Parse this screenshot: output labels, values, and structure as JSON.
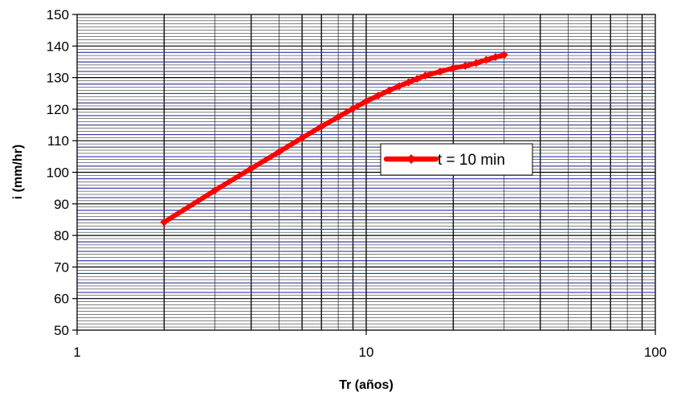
{
  "chart_data": {
    "type": "line",
    "title": "",
    "xlabel": "Tr (años)",
    "ylabel": "i (mm/hr)",
    "xscale": "log",
    "xlim": [
      1,
      100
    ],
    "ylim": [
      50,
      150
    ],
    "x_ticks": [
      "1",
      "10",
      "100"
    ],
    "y_ticks": [
      "50",
      "60",
      "70",
      "80",
      "90",
      "100",
      "110",
      "120",
      "130",
      "140",
      "150"
    ],
    "grid": true,
    "legend_position": "right, inside plot area",
    "series": [
      {
        "name": "t = 10 min",
        "color": "#ff0000",
        "x": [
          2,
          3,
          4,
          5,
          6,
          7,
          8,
          9,
          10,
          11,
          12,
          13,
          14,
          15,
          16,
          18,
          20,
          22,
          24,
          26,
          28,
          30
        ],
        "y": [
          84.2,
          94.3,
          101.2,
          106.5,
          110.9,
          114.5,
          117.5,
          120.2,
          122.5,
          124.3,
          125.9,
          127.3,
          128.5,
          129.6,
          130.6,
          131.9,
          133.0,
          133.7,
          134.6,
          135.6,
          136.5,
          137.2
        ]
      }
    ]
  }
}
